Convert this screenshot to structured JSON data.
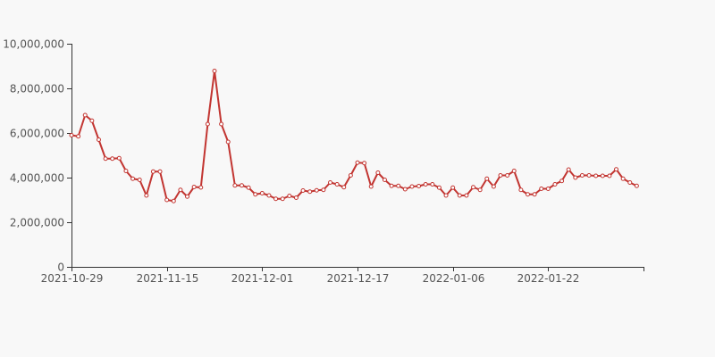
{
  "colors": {
    "series": "#c23531",
    "background": "#f8f8f8",
    "axis": "#333333",
    "label": "#555555"
  },
  "chart_data": {
    "type": "line",
    "title": "",
    "xlabel": "",
    "ylabel": "",
    "ylim": [
      0,
      10000000
    ],
    "yticks": [
      0,
      2000000,
      4000000,
      6000000,
      8000000,
      10000000
    ],
    "ytick_labels": [
      "0",
      "2,000,000",
      "4,000,000",
      "6,000,000",
      "8,000,000",
      "10,000,000"
    ],
    "xtick_labels": [
      {
        "label": "2021-10-29",
        "index": 0
      },
      {
        "label": "2021-11-15",
        "index": 14
      },
      {
        "label": "2021-12-01",
        "index": 28
      },
      {
        "label": "2021-12-17",
        "index": 42
      },
      {
        "label": "2022-01-06",
        "index": 56
      },
      {
        "label": "2022-01-22",
        "index": 70
      }
    ],
    "grid": false,
    "series": [
      {
        "values": [
          5900000,
          5850000,
          6800000,
          6550000,
          5700000,
          4850000,
          4850000,
          4870000,
          4300000,
          3950000,
          3900000,
          3200000,
          4270000,
          4270000,
          3000000,
          2950000,
          3450000,
          3150000,
          3580000,
          3560000,
          6400000,
          8780000,
          6400000,
          5600000,
          3650000,
          3650000,
          3550000,
          3250000,
          3300000,
          3200000,
          3050000,
          3050000,
          3180000,
          3100000,
          3420000,
          3370000,
          3430000,
          3450000,
          3780000,
          3700000,
          3570000,
          4100000,
          4670000,
          4650000,
          3600000,
          4220000,
          3900000,
          3630000,
          3630000,
          3480000,
          3600000,
          3620000,
          3700000,
          3700000,
          3550000,
          3200000,
          3550000,
          3200000,
          3200000,
          3570000,
          3450000,
          3950000,
          3600000,
          4100000,
          4100000,
          4300000,
          3450000,
          3250000,
          3250000,
          3500000,
          3500000,
          3700000,
          3850000,
          4360000,
          4000000,
          4100000,
          4100000,
          4080000,
          4080000,
          4080000,
          4370000,
          3950000,
          3780000,
          3630000
        ]
      }
    ]
  }
}
